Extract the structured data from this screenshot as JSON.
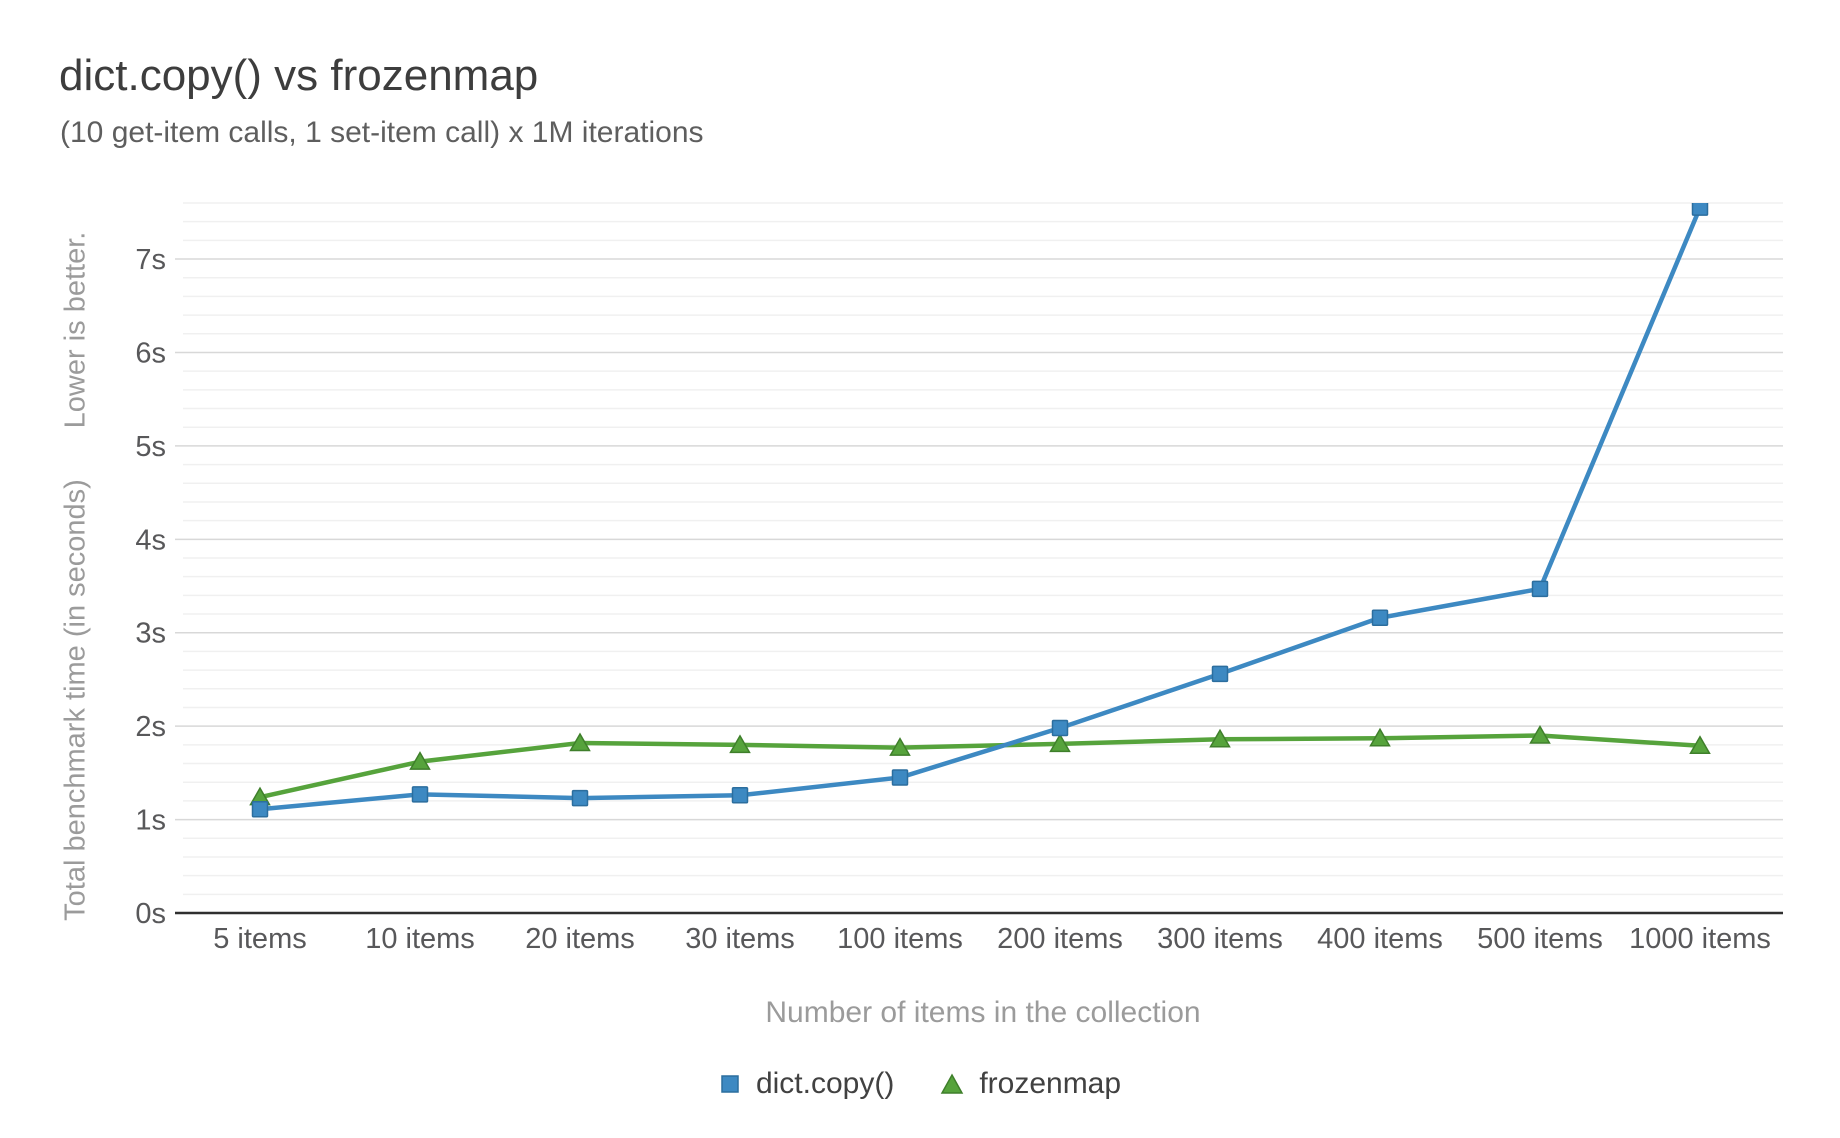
{
  "chart_data": {
    "type": "line",
    "title": "dict.copy() vs frozenmap",
    "subtitle": "(10 get-item calls, 1 set-item call) x 1M iterations",
    "xlabel": "Number of items in the collection",
    "ylabel": "Total benchmark time (in seconds)",
    "ylabel_note": "Lower is better.",
    "categories": [
      "5 items",
      "10 items",
      "20 items",
      "30 items",
      "100 items",
      "200 items",
      "300 items",
      "400 items",
      "500 items",
      "1000 items"
    ],
    "series": [
      {
        "name": "dict.copy()",
        "marker": "square",
        "color": "#3d89c2",
        "edge_color": "#2c6e9e",
        "values": [
          1.11,
          1.27,
          1.23,
          1.26,
          1.45,
          1.98,
          2.56,
          3.16,
          3.47,
          7.55
        ]
      },
      {
        "name": "frozenmap",
        "marker": "triangle",
        "color": "#56a33c",
        "edge_color": "#3f7f2b",
        "values": [
          1.24,
          1.62,
          1.82,
          1.8,
          1.77,
          1.81,
          1.86,
          1.87,
          1.9,
          1.79
        ]
      }
    ],
    "ylim": [
      0,
      7.6
    ],
    "ytick_labels": [
      "0s",
      "1s",
      "2s",
      "3s",
      "4s",
      "5s",
      "6s",
      "7s"
    ],
    "ytick_step": 1,
    "minor_tick_step": 0.2,
    "grid": "horizontal",
    "legend_position": "bottom"
  },
  "palette": {
    "title_text": "#3d3d3d",
    "subtitle_text": "#5e5e5e",
    "axis_title_text": "#9b9b9b",
    "tick_label_text": "#58585a",
    "legend_text": "#414141",
    "minor_gridline": "#f0f0f0",
    "major_gridline": "#d8d8d8",
    "axis_line": "#2f2f2f",
    "background": "#ffffff"
  }
}
